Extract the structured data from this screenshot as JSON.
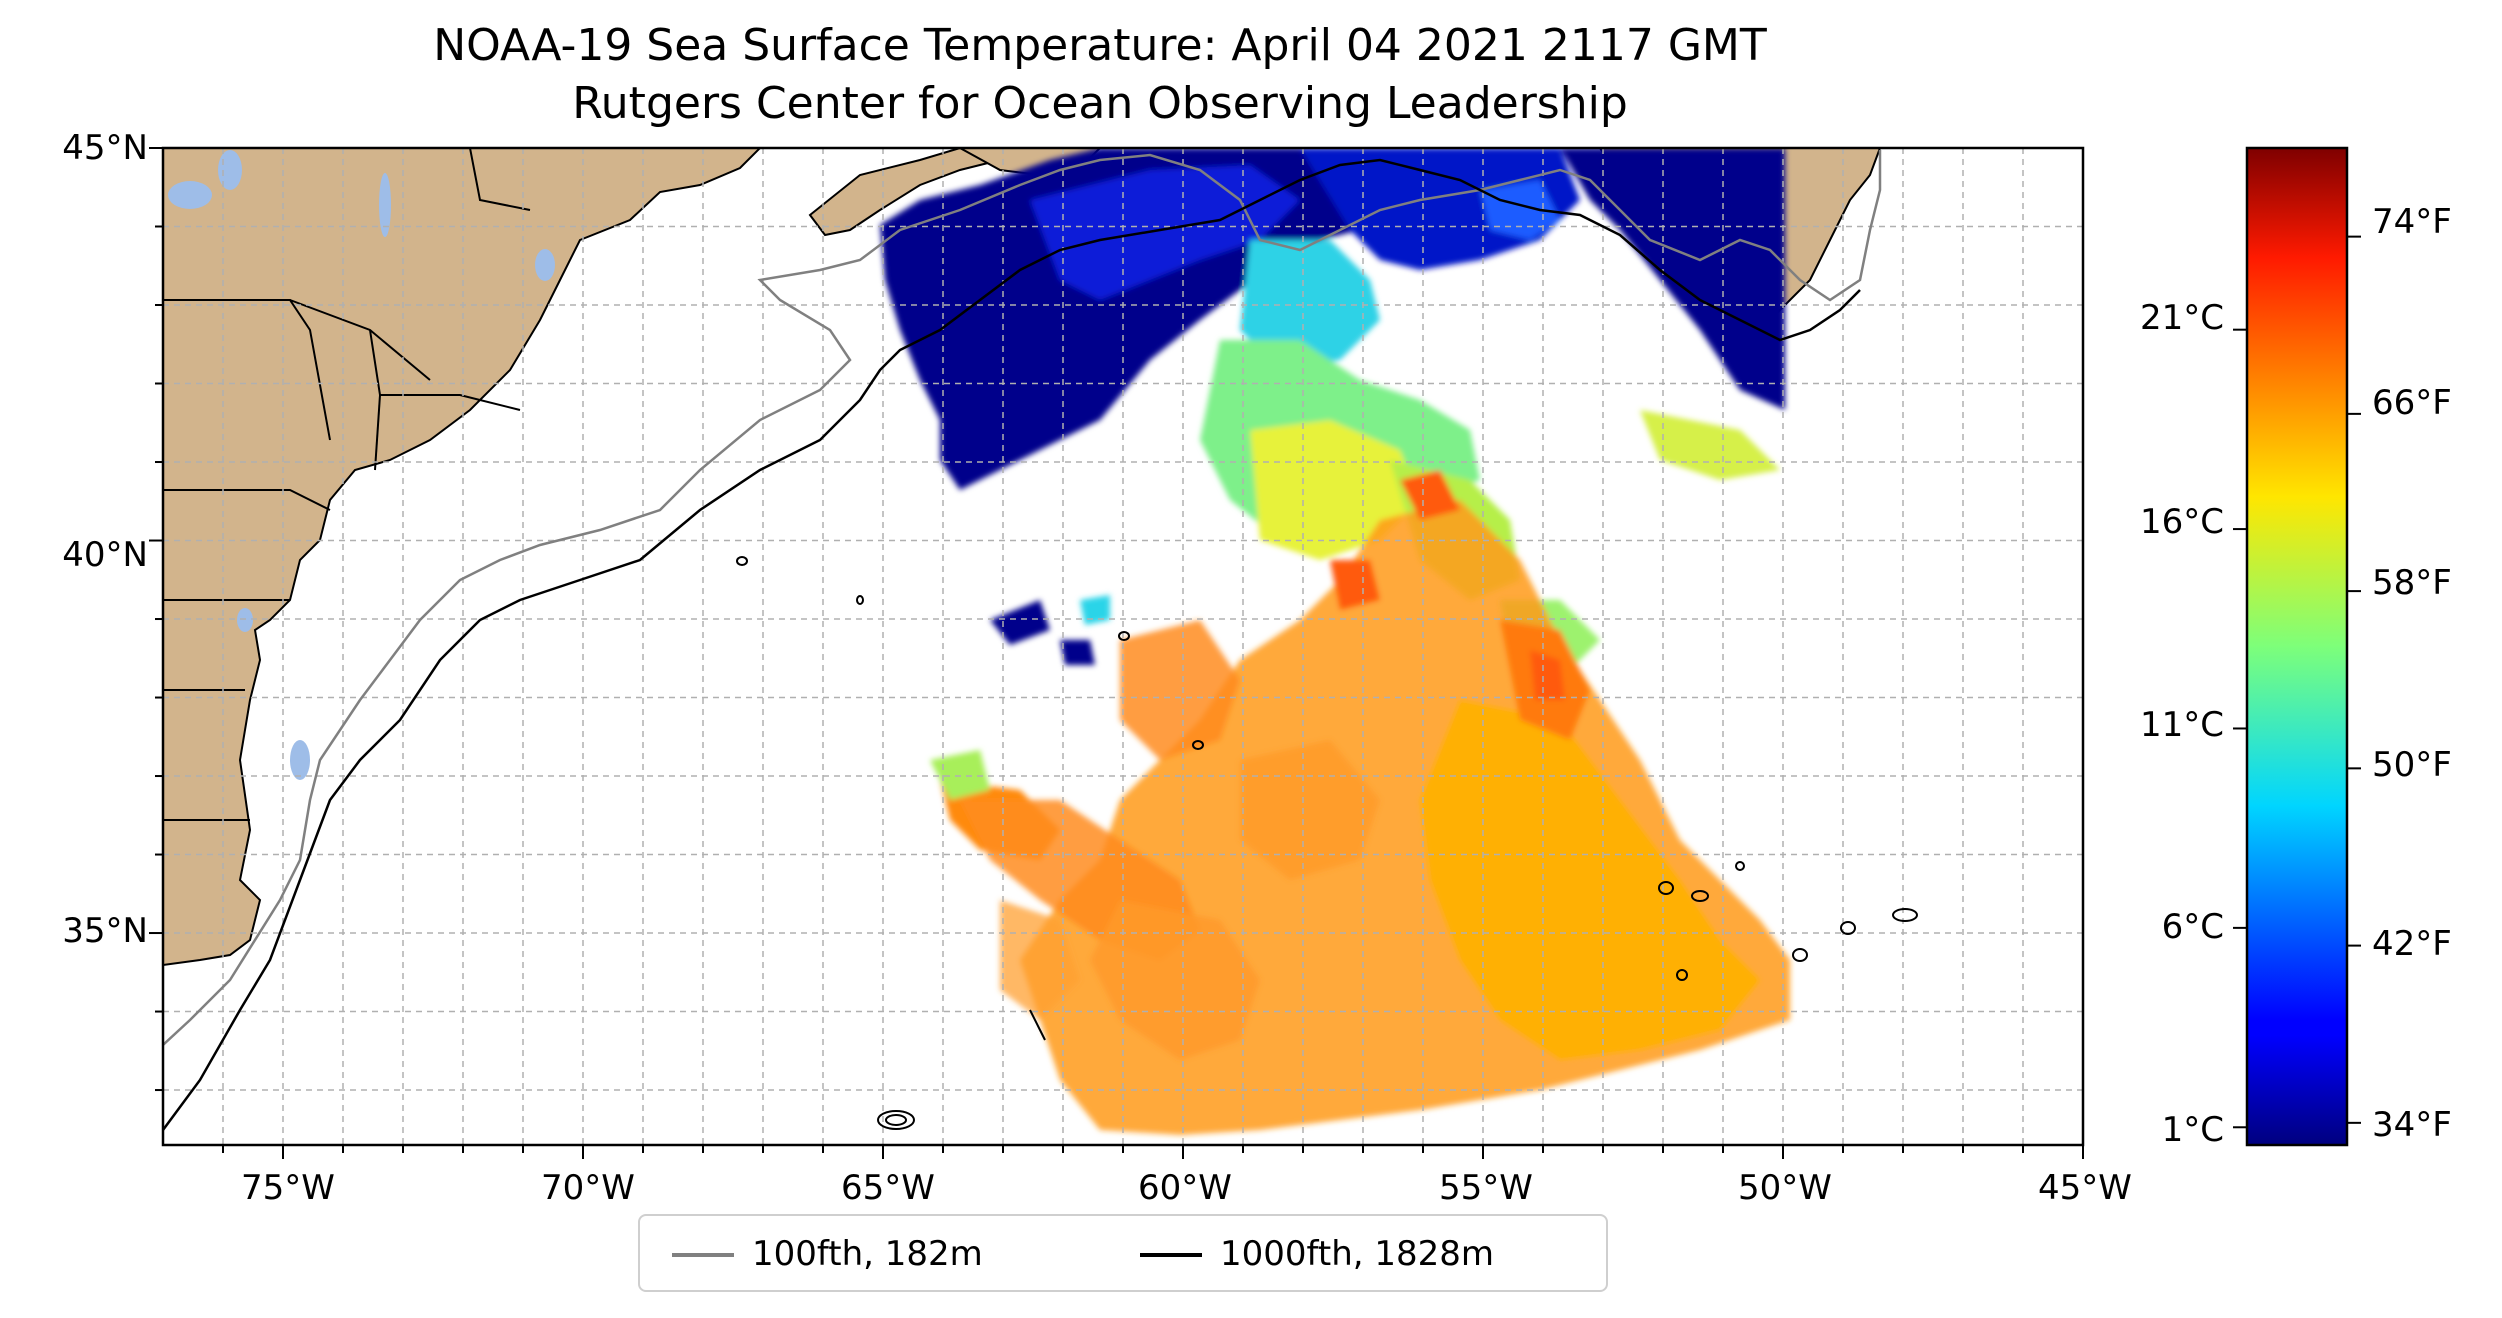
{
  "title": "NOAA-19 Sea Surface Temperature: April 04 2021 2117 GMT",
  "subtitle": "Rutgers Center for Ocean Observing Leadership",
  "axes": {
    "lat_ticks": [
      "45°N",
      "40°N",
      "35°N"
    ],
    "lon_ticks": [
      "75°W",
      "70°W",
      "65°W",
      "60°W",
      "55°W",
      "50°W",
      "45°W"
    ],
    "extent": {
      "lon_min": -77,
      "lon_max": -45,
      "lat_min": 32.3,
      "lat_max": 45
    }
  },
  "colorbar": {
    "colormap": "jet",
    "celsius_ticks": [
      "21°C",
      "16°C",
      "11°C",
      "6°C",
      "1°C"
    ],
    "fahrenheit_ticks": [
      "74°F",
      "66°F",
      "58°F",
      "50°F",
      "42°F",
      "34°F"
    ],
    "range_f": [
      33,
      78
    ]
  },
  "legend": {
    "items": [
      {
        "label": "100fth, 182m",
        "color": "#808080"
      },
      {
        "label": "1000fth, 1828m",
        "color": "#000000"
      }
    ],
    "placement": "bottom-center"
  },
  "colors": {
    "land": "#d2b48c",
    "lakes": "#9ebde8",
    "grid": "#b0b0b0",
    "sst_cold": "#00008b",
    "sst_warm": "#ff8c00"
  }
}
